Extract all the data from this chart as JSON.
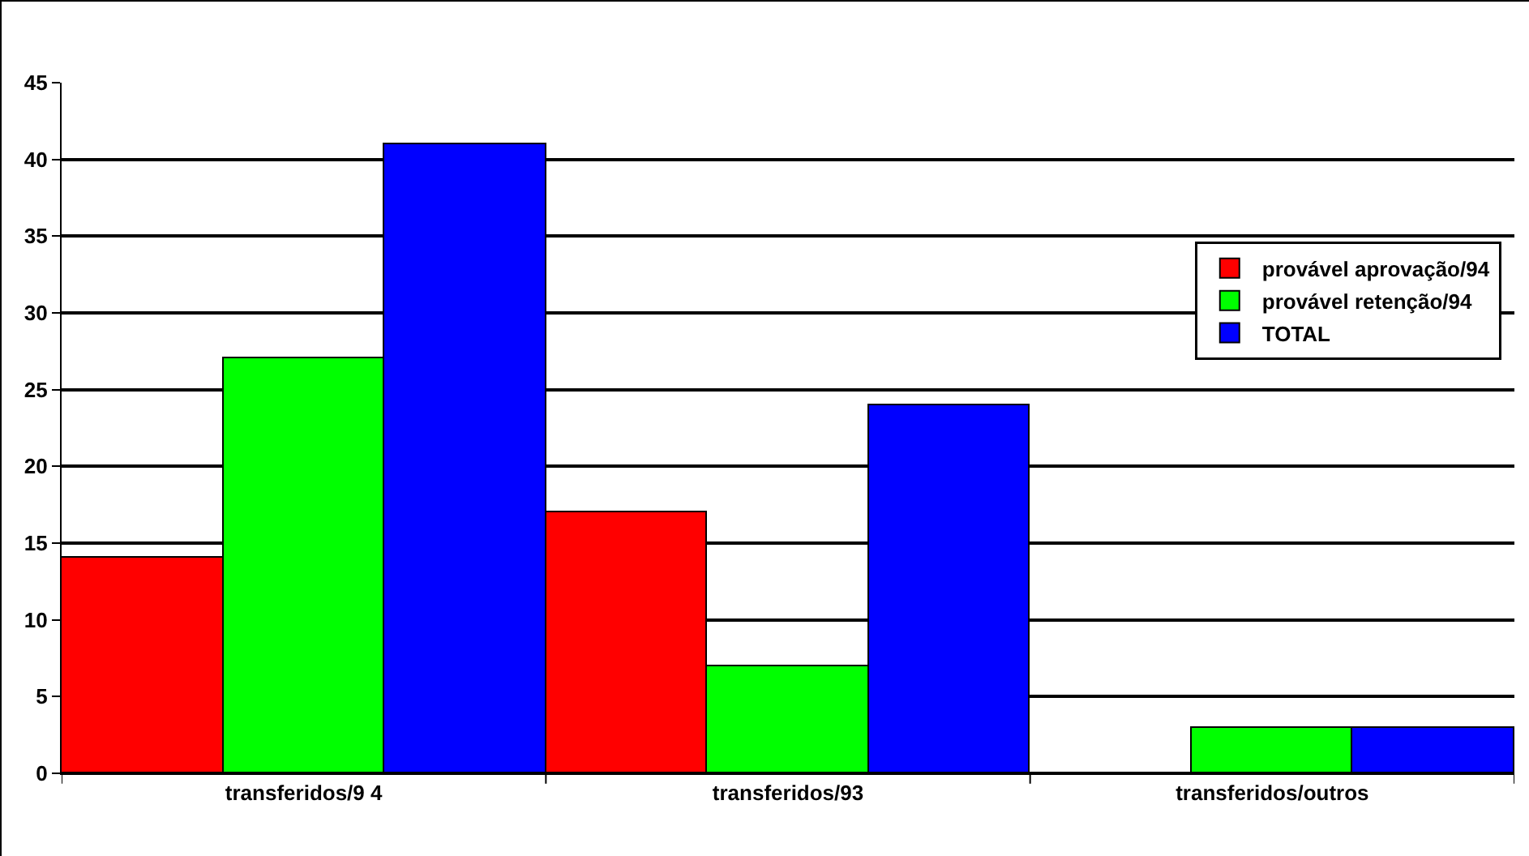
{
  "chart_data": {
    "type": "bar",
    "categories": [
      "transferidos/9 4",
      "transferidos/93",
      "transferidos/outros"
    ],
    "series": [
      {
        "name": "provável aprovação/94",
        "color": "#ff0000",
        "values": [
          14,
          17,
          0
        ]
      },
      {
        "name": "provável retenção/94",
        "color": "#00ff00",
        "values": [
          27,
          7,
          3
        ]
      },
      {
        "name": "TOTAL",
        "color": "#0000ff",
        "values": [
          41,
          24,
          3
        ]
      }
    ],
    "ylim": [
      0,
      45
    ],
    "yticks": [
      0,
      5,
      10,
      15,
      20,
      25,
      30,
      35,
      40,
      45
    ],
    "grid": "y",
    "legend": "right"
  }
}
